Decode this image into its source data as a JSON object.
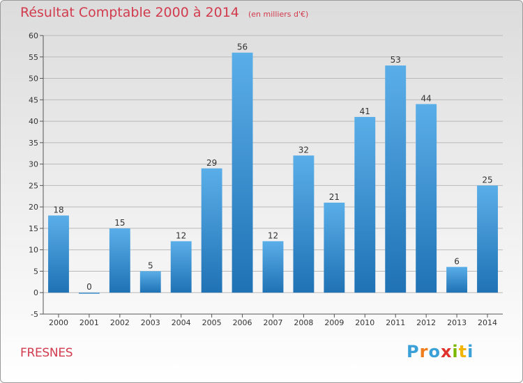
{
  "header": {
    "title": "Résultat Comptable 2000 à 2014",
    "subtitle": "(en milliers d'€)"
  },
  "footer": {
    "commune": "FRESNES",
    "logo_letters": [
      "P",
      "r",
      "o",
      "x",
      "i",
      "t",
      "i"
    ],
    "logo_colors": [
      "#3aa0d8",
      "#f07d1b",
      "#3aa0d8",
      "#e0322c",
      "#7ab800",
      "#f2b400",
      "#3aa0d8"
    ]
  },
  "colors": {
    "title": "#d23a4d",
    "bar_top": "#5aaee8",
    "bar_bottom": "#1f72b4",
    "grid": "#b9b9b9"
  },
  "chart_data": {
    "type": "bar",
    "title": "Résultat Comptable 2000 à 2014",
    "subtitle": "(en milliers d'€)",
    "xlabel": "",
    "ylabel": "",
    "categories": [
      "2000",
      "2001",
      "2002",
      "2003",
      "2004",
      "2005",
      "2006",
      "2007",
      "2008",
      "2009",
      "2010",
      "2011",
      "2012",
      "2013",
      "2014"
    ],
    "values": [
      18,
      0,
      15,
      5,
      12,
      29,
      56,
      12,
      32,
      21,
      41,
      53,
      44,
      6,
      25
    ],
    "ylim": [
      -5,
      60
    ],
    "yticks": [
      -5,
      0,
      5,
      10,
      15,
      20,
      25,
      30,
      35,
      40,
      45,
      50,
      55,
      60
    ],
    "grid": true,
    "data_labels": true
  }
}
